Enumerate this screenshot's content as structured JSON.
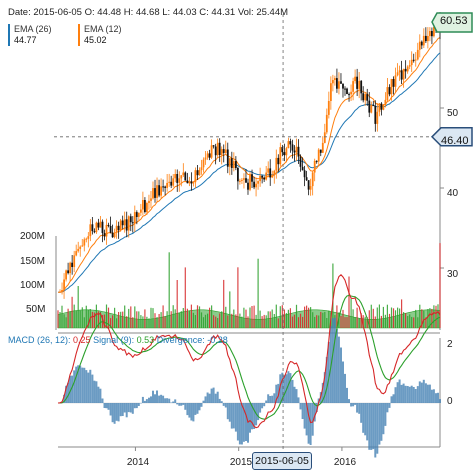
{
  "header": {
    "date_label": "Date:",
    "date": "2015-06-05",
    "o_label": "O:",
    "open": "44.48",
    "h_label": "H:",
    "high": "44.68",
    "l_label": "L:",
    "low": "44.03",
    "c_label": "C:",
    "close": "44.31",
    "vol_label": "Vol:",
    "volume": "25.44M"
  },
  "legend": {
    "ema26": {
      "name": "EMA (26)",
      "value": "44.77",
      "color": "#1f77b4"
    },
    "ema12": {
      "name": "EMA (12)",
      "value": "45.02",
      "color": "#ff7f0e"
    }
  },
  "macd_header": {
    "macd": "MACD (26, 12):",
    "macd_value": "0.25",
    "signal": "Signal (9):",
    "signal_value": "0.53",
    "divergence": "Divergence:",
    "divergence_value": "-0.28"
  },
  "badges": {
    "last_price": "60.53",
    "crosshair_price": "46.40",
    "crosshair_date": "2015-06-05"
  },
  "colors": {
    "up": "#2ca02c",
    "down": "#d62728",
    "candle_up": "#ff7f0e",
    "candle_down": "#111111",
    "macd_line": "#d62728",
    "signal_line": "#2ca02c",
    "divergence": "#4682b4",
    "last_price_bg": "#dff2e1",
    "last_price_border": "#2e8b57",
    "crosshair_bg": "#dbe7f3",
    "crosshair_border": "#2a4e7a"
  },
  "chart_data": {
    "type": "candlestick",
    "x_ticks": [
      "2014",
      "2015",
      "2016"
    ],
    "price_axis": {
      "ticks": [
        "30",
        "40",
        "50"
      ],
      "range": [
        25,
        62
      ]
    },
    "volume_axis": {
      "ticks": [
        "50M",
        "100M",
        "150M",
        "200M"
      ],
      "range": [
        0,
        250
      ]
    },
    "macd_axis": {
      "ticks": [
        "0",
        "2"
      ],
      "range": [
        -2.5,
        3
      ]
    },
    "price_path": [
      {
        "x": 2013.25,
        "y": 27.0
      },
      {
        "x": 2013.45,
        "y": 33.0
      },
      {
        "x": 2013.6,
        "y": 35.5
      },
      {
        "x": 2013.8,
        "y": 34.0
      },
      {
        "x": 2014.0,
        "y": 37.0
      },
      {
        "x": 2014.25,
        "y": 40.0
      },
      {
        "x": 2014.45,
        "y": 41.0
      },
      {
        "x": 2014.6,
        "y": 42.0
      },
      {
        "x": 2014.75,
        "y": 45.5
      },
      {
        "x": 2014.9,
        "y": 43.5
      },
      {
        "x": 2015.05,
        "y": 40.5
      },
      {
        "x": 2015.25,
        "y": 41.5
      },
      {
        "x": 2015.42,
        "y": 44.3
      },
      {
        "x": 2015.55,
        "y": 45.5
      },
      {
        "x": 2015.68,
        "y": 40.0
      },
      {
        "x": 2015.8,
        "y": 45.5
      },
      {
        "x": 2015.9,
        "y": 53.0
      },
      {
        "x": 2016.05,
        "y": 52.0
      },
      {
        "x": 2016.15,
        "y": 53.5
      },
      {
        "x": 2016.32,
        "y": 49.0
      },
      {
        "x": 2016.5,
        "y": 53.0
      },
      {
        "x": 2016.65,
        "y": 56.0
      },
      {
        "x": 2016.82,
        "y": 58.5
      },
      {
        "x": 2016.95,
        "y": 60.5
      }
    ],
    "crosshair": {
      "x": "2015-06-05",
      "y": 46.4
    },
    "last_price": 60.53
  }
}
